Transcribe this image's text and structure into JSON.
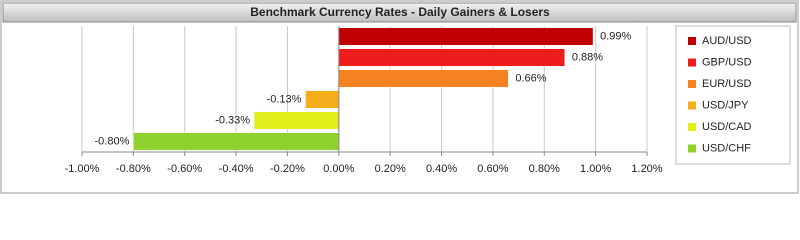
{
  "chart_data": {
    "type": "bar",
    "orientation": "horizontal",
    "title": "Benchmark Currency Rates - Daily Gainers & Losers",
    "categories": [
      "AUD/USD",
      "GBP/USD",
      "EUR/USD",
      "USD/JPY",
      "USD/CAD",
      "USD/CHF"
    ],
    "values": [
      0.99,
      0.88,
      0.66,
      -0.13,
      -0.33,
      -0.8
    ],
    "value_labels": [
      "0.99%",
      "0.88%",
      "0.66%",
      "-0.13%",
      "-0.33%",
      "-0.80%"
    ],
    "colors": [
      "#c00000",
      "#ee1c1c",
      "#f5821f",
      "#f5ad1b",
      "#e0ee1a",
      "#8fd12f"
    ],
    "xlim": [
      -1.0,
      1.2
    ],
    "xticks": [
      {
        "value": -1.0,
        "label": "-1.00%"
      },
      {
        "value": -0.8,
        "label": "-0.80%"
      },
      {
        "value": -0.6,
        "label": "-0.60%"
      },
      {
        "value": -0.4,
        "label": "-0.40%"
      },
      {
        "value": -0.2,
        "label": "-0.20%"
      },
      {
        "value": 0.0,
        "label": "0.00%"
      },
      {
        "value": 0.2,
        "label": "0.20%"
      },
      {
        "value": 0.4,
        "label": "0.40%"
      },
      {
        "value": 0.6,
        "label": "0.60%"
      },
      {
        "value": 0.8,
        "label": "0.80%"
      },
      {
        "value": 1.0,
        "label": "1.00%"
      },
      {
        "value": 1.2,
        "label": "1.20%"
      }
    ],
    "grid": true,
    "legend": "right"
  }
}
